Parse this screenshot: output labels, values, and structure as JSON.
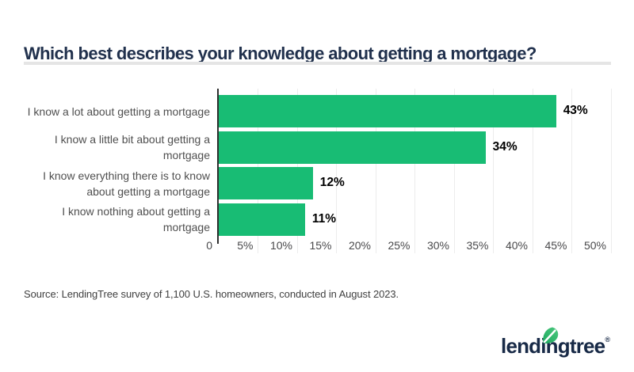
{
  "page": {
    "title": "Which best describes your knowledge about getting a mortgage?",
    "source": "Source: LendingTree survey of 1,100 U.S. homeowners, conducted in August 2023.",
    "logo_text": "lendingtree",
    "registered_mark": "®"
  },
  "colors": {
    "bar_green": "#18bc74",
    "title_navy": "#21314d",
    "logo_navy": "#182a47",
    "label_gray": "#4f4f4f",
    "tick_gray": "#49494b",
    "axis_dark": "#2e2e2e",
    "gridline": "#ececec",
    "divider": "#e5e5e5",
    "value_black": "#000000",
    "source_gray": "#3f3f3f",
    "leaf_green_dark": "#1ca95e",
    "leaf_green_light": "#4cc87e"
  },
  "chart_data": {
    "type": "bar",
    "orientation": "horizontal",
    "title": "Which best describes your knowledge about getting a mortgage?",
    "categories": [
      "I know a lot about getting a mortgage",
      "I know a little bit about getting a mortgage",
      "I know everything there is to know about getting a mortgage",
      "I know nothing about getting a mortgage"
    ],
    "values": [
      43,
      34,
      12,
      11
    ],
    "value_labels": [
      "43%",
      "34%",
      "12%",
      "11%"
    ],
    "xlabel": "",
    "ylabel": "",
    "xlim": [
      0,
      50
    ],
    "x_tick_values": [
      0,
      5,
      10,
      15,
      20,
      25,
      30,
      35,
      40,
      45,
      50
    ],
    "x_ticks": [
      "0",
      "5%",
      "10%",
      "15%",
      "20%",
      "25%",
      "30%",
      "35%",
      "40%",
      "45%",
      "50%"
    ],
    "grid": true,
    "legend": "none"
  }
}
